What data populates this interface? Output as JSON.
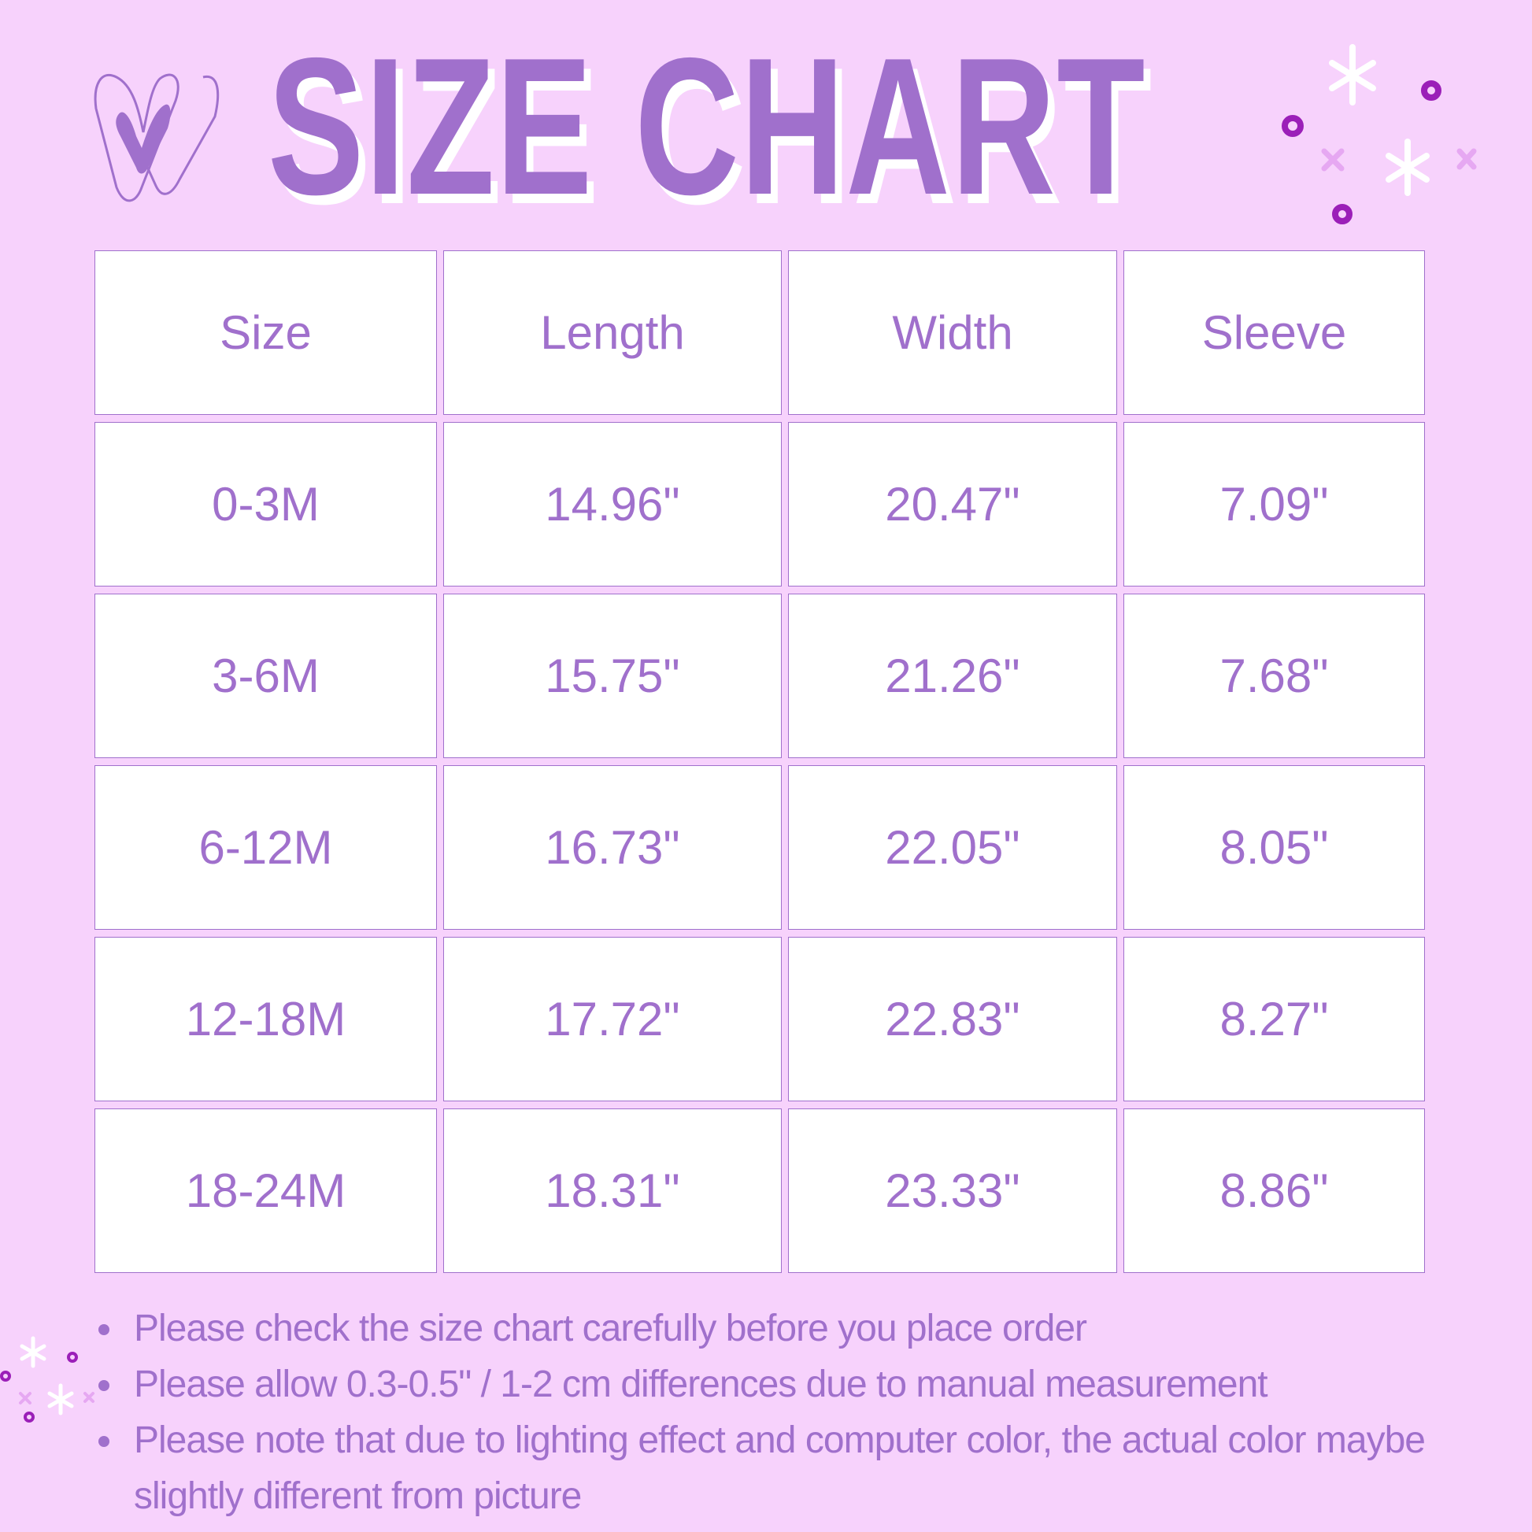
{
  "title": "SIZE CHART",
  "colors": {
    "background": "#f7d2fc",
    "accent": "#a070cc",
    "cell": "#ffffff",
    "dot": "#9b1fb8"
  },
  "table": {
    "headers": [
      "Size",
      "Length",
      "Width",
      "Sleeve"
    ],
    "rows": [
      [
        "0-3M",
        "14.96\"",
        "20.47\"",
        "7.09\""
      ],
      [
        "3-6M",
        "15.75\"",
        "21.26\"",
        "7.68\""
      ],
      [
        "6-12M",
        "16.73\"",
        "22.05\"",
        "8.05\""
      ],
      [
        "12-18M",
        "17.72\"",
        "22.83\"",
        "8.27\""
      ],
      [
        "18-24M",
        "18.31\"",
        "23.33\"",
        "8.86\""
      ]
    ]
  },
  "notes": [
    "Please check the size chart carefully before you place order",
    "Please allow 0.3-0.5\" / 1-2 cm differences due to manual measurement",
    "Please note that due to lighting effect and computer color, the actual color maybe slightly different from picture"
  ],
  "icons": [
    "heart-icon",
    "sparkle-icon"
  ]
}
